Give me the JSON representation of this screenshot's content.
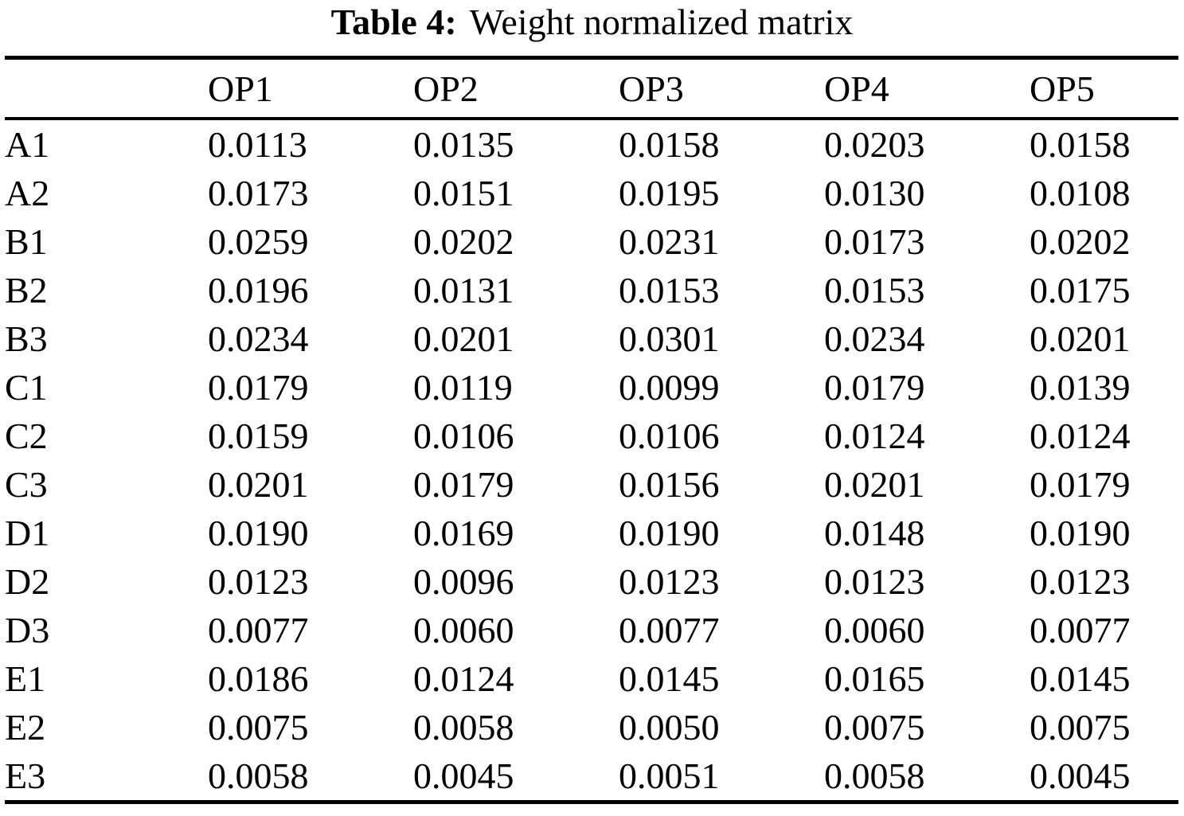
{
  "caption": {
    "label": "Table 4:",
    "text": "Weight normalized matrix"
  },
  "table": {
    "columns": [
      "",
      "OP1",
      "OP2",
      "OP3",
      "OP4",
      "OP5"
    ],
    "rows": [
      {
        "label": "A1",
        "values": [
          "0.0113",
          "0.0135",
          "0.0158",
          "0.0203",
          "0.0158"
        ]
      },
      {
        "label": "A2",
        "values": [
          "0.0173",
          "0.0151",
          "0.0195",
          "0.0130",
          "0.0108"
        ]
      },
      {
        "label": "B1",
        "values": [
          "0.0259",
          "0.0202",
          "0.0231",
          "0.0173",
          "0.0202"
        ]
      },
      {
        "label": "B2",
        "values": [
          "0.0196",
          "0.0131",
          "0.0153",
          "0.0153",
          "0.0175"
        ]
      },
      {
        "label": "B3",
        "values": [
          "0.0234",
          "0.0201",
          "0.0301",
          "0.0234",
          "0.0201"
        ]
      },
      {
        "label": "C1",
        "values": [
          "0.0179",
          "0.0119",
          "0.0099",
          "0.0179",
          "0.0139"
        ]
      },
      {
        "label": "C2",
        "values": [
          "0.0159",
          "0.0106",
          "0.0106",
          "0.0124",
          "0.0124"
        ]
      },
      {
        "label": "C3",
        "values": [
          "0.0201",
          "0.0179",
          "0.0156",
          "0.0201",
          "0.0179"
        ]
      },
      {
        "label": "D1",
        "values": [
          "0.0190",
          "0.0169",
          "0.0190",
          "0.0148",
          "0.0190"
        ]
      },
      {
        "label": "D2",
        "values": [
          "0.0123",
          "0.0096",
          "0.0123",
          "0.0123",
          "0.0123"
        ]
      },
      {
        "label": "D3",
        "values": [
          "0.0077",
          "0.0060",
          "0.0077",
          "0.0060",
          "0.0077"
        ]
      },
      {
        "label": "E1",
        "values": [
          "0.0186",
          "0.0124",
          "0.0145",
          "0.0165",
          "0.0145"
        ]
      },
      {
        "label": "E2",
        "values": [
          "0.0075",
          "0.0058",
          "0.0050",
          "0.0075",
          "0.0075"
        ]
      },
      {
        "label": "E3",
        "values": [
          "0.0058",
          "0.0045",
          "0.0051",
          "0.0058",
          "0.0045"
        ]
      }
    ]
  },
  "chart_data": {
    "type": "table",
    "title": "Table 4: Weight normalized matrix",
    "columns": [
      "OP1",
      "OP2",
      "OP3",
      "OP4",
      "OP5"
    ],
    "row_labels": [
      "A1",
      "A2",
      "B1",
      "B2",
      "B3",
      "C1",
      "C2",
      "C3",
      "D1",
      "D2",
      "D3",
      "E1",
      "E2",
      "E3"
    ],
    "values": [
      [
        0.0113,
        0.0135,
        0.0158,
        0.0203,
        0.0158
      ],
      [
        0.0173,
        0.0151,
        0.0195,
        0.013,
        0.0108
      ],
      [
        0.0259,
        0.0202,
        0.0231,
        0.0173,
        0.0202
      ],
      [
        0.0196,
        0.0131,
        0.0153,
        0.0153,
        0.0175
      ],
      [
        0.0234,
        0.0201,
        0.0301,
        0.0234,
        0.0201
      ],
      [
        0.0179,
        0.0119,
        0.0099,
        0.0179,
        0.0139
      ],
      [
        0.0159,
        0.0106,
        0.0106,
        0.0124,
        0.0124
      ],
      [
        0.0201,
        0.0179,
        0.0156,
        0.0201,
        0.0179
      ],
      [
        0.019,
        0.0169,
        0.019,
        0.0148,
        0.019
      ],
      [
        0.0123,
        0.0096,
        0.0123,
        0.0123,
        0.0123
      ],
      [
        0.0077,
        0.006,
        0.0077,
        0.006,
        0.0077
      ],
      [
        0.0186,
        0.0124,
        0.0145,
        0.0165,
        0.0145
      ],
      [
        0.0075,
        0.0058,
        0.005,
        0.0075,
        0.0075
      ],
      [
        0.0058,
        0.0045,
        0.0051,
        0.0058,
        0.0045
      ]
    ]
  }
}
